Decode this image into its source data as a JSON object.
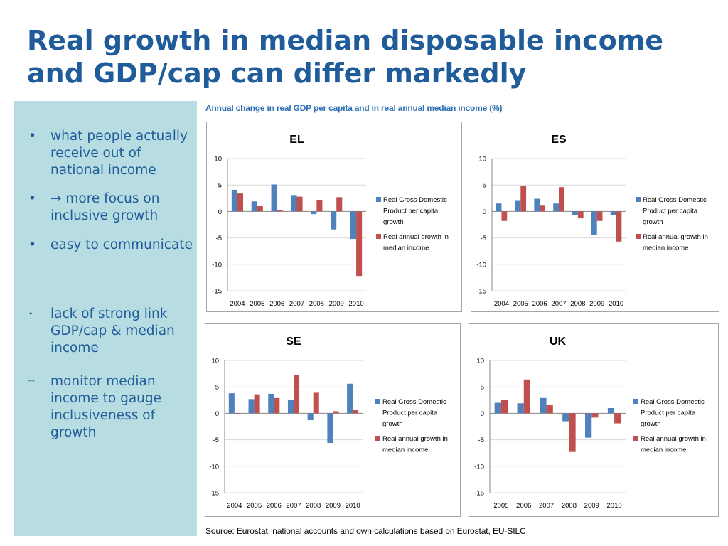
{
  "title": {
    "line1": "Real growth in median disposable income",
    "line2": "and GDP/cap can differ markedly"
  },
  "sidebar": {
    "bullets": [
      {
        "marker": "•",
        "text": "what people actually receive out of national income"
      },
      {
        "marker": "•",
        "text": "→ more focus on inclusive growth"
      },
      {
        "marker": "•",
        "text": "easy to communicate"
      },
      {
        "marker": "•",
        "text": "lack of strong link GDP/cap & median income"
      },
      {
        "marker": "⇨",
        "text": "monitor median income to gauge inclusiveness of growth"
      }
    ]
  },
  "chart_title": "Annual change in real GDP per capita and in real annual median income (%)",
  "source": "Source: Eurostat, national accounts and own calculations based on Eurostat, EU-SILC",
  "colors": {
    "gdp": "#4f81bd",
    "income": "#c0504d",
    "grid": "#d9d9d9",
    "axis": "#868686"
  },
  "chart_data": [
    {
      "type": "bar",
      "title": "EL",
      "categories": [
        "2004",
        "2005",
        "2006",
        "2007",
        "2008",
        "2009",
        "2010"
      ],
      "ylim": [
        -15,
        10
      ],
      "yticks": [
        10,
        5,
        0,
        -5,
        -10,
        -15
      ],
      "series": [
        {
          "name": "Real Gross Domestic Product per capita growth",
          "values": [
            4.1,
            1.9,
            5.1,
            3.1,
            -0.5,
            -3.4,
            -5.2
          ]
        },
        {
          "name": "Real annual growth in median income",
          "values": [
            3.4,
            1.0,
            0.3,
            2.8,
            2.2,
            2.7,
            -12.2
          ]
        }
      ],
      "legend": "right"
    },
    {
      "type": "bar",
      "title": "ES",
      "categories": [
        "2004",
        "2005",
        "2006",
        "2007",
        "2008",
        "2009",
        "2010"
      ],
      "ylim": [
        -15,
        10
      ],
      "yticks": [
        10,
        5,
        0,
        -5,
        -10,
        -15
      ],
      "series": [
        {
          "name": "Real Gross Domestic Product per capita growth",
          "values": [
            1.5,
            2.0,
            2.4,
            1.5,
            -0.7,
            -4.4,
            -0.7
          ]
        },
        {
          "name": "Real annual growth in median income",
          "values": [
            -1.8,
            4.8,
            1.1,
            4.6,
            -1.3,
            -1.8,
            -5.7
          ]
        }
      ],
      "legend": "right"
    },
    {
      "type": "bar",
      "title": "SE",
      "categories": [
        "2004",
        "2005",
        "2006",
        "2007",
        "2008",
        "2009",
        "2010"
      ],
      "ylim": [
        -15,
        10
      ],
      "yticks": [
        10,
        5,
        0,
        -5,
        -10,
        -15
      ],
      "series": [
        {
          "name": "Real Gross Domestic Product per capita growth",
          "values": [
            3.8,
            2.7,
            3.7,
            2.6,
            -1.3,
            -5.6,
            5.6
          ]
        },
        {
          "name": "Real annual growth in median income",
          "values": [
            -0.2,
            3.6,
            2.9,
            7.3,
            3.9,
            0.4,
            0.6
          ]
        }
      ],
      "legend": "right"
    },
    {
      "type": "bar",
      "title": "UK",
      "categories": [
        "2005",
        "2006",
        "2007",
        "2008",
        "2009",
        "2010"
      ],
      "ylim": [
        -15,
        10
      ],
      "yticks": [
        10,
        5,
        0,
        -5,
        -10,
        -15
      ],
      "series": [
        {
          "name": "Real Gross Domestic Product per capita growth",
          "values": [
            2.0,
            1.9,
            2.9,
            -1.5,
            -4.6,
            1.0
          ]
        },
        {
          "name": "Real annual growth in median income",
          "values": [
            2.6,
            6.4,
            1.6,
            -7.3,
            -0.8,
            -1.9
          ]
        }
      ],
      "legend": "right"
    }
  ]
}
